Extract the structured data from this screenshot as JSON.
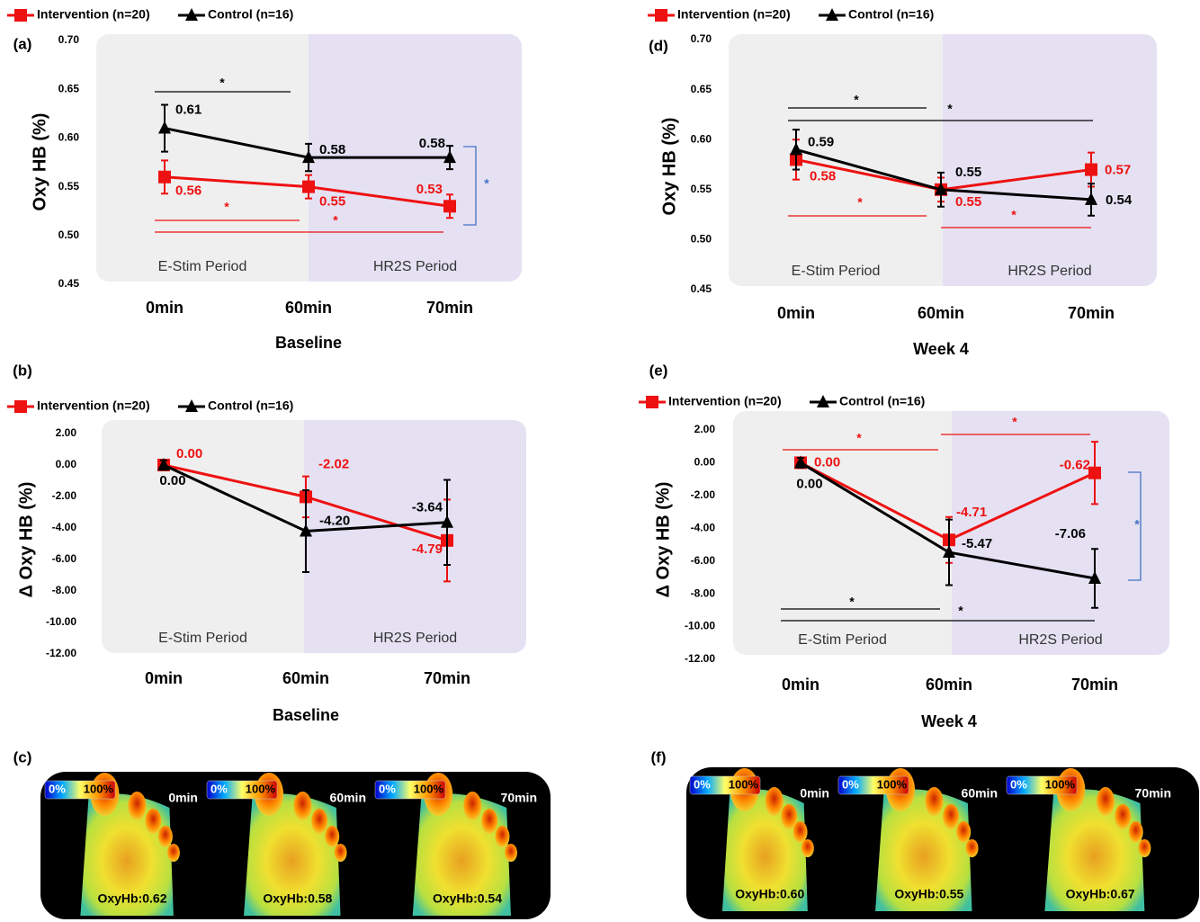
{
  "chart_data": [
    {
      "type": "line",
      "panel": "(a)",
      "ylabel": "Oxy HB (%)",
      "xlabel": "Baseline",
      "categories": [
        "0min",
        "60min",
        "70min"
      ],
      "ylim": [
        0.45,
        0.7
      ],
      "yticks": [
        {
          "value": 0.45,
          "label": "0.45"
        },
        {
          "value": 0.5,
          "label": "0.50"
        },
        {
          "value": 0.55,
          "label": "0.55"
        },
        {
          "value": 0.6,
          "label": "0.60"
        },
        {
          "value": 0.65,
          "label": "0.65"
        },
        {
          "value": 0.7,
          "label": "0.70"
        }
      ],
      "periods": [
        {
          "label": "E-Stim Period",
          "color": "#efefef"
        },
        {
          "label": "HR2S Period",
          "color": "#e5e1f3"
        }
      ],
      "series": [
        {
          "name": "Intervention (n=20)",
          "color": "#ee1111",
          "marker": "square",
          "values": [
            0.56,
            0.55,
            0.53
          ],
          "errors": [
            0.017,
            0.012,
            0.012
          ]
        },
        {
          "name": "Control (n=16)",
          "color": "#000000",
          "marker": "triangle",
          "values": [
            0.61,
            0.58,
            0.58
          ],
          "errors": [
            0.024,
            0.014,
            0.012
          ]
        }
      ],
      "annotations": [
        {
          "text": "*",
          "color": "#000000"
        },
        {
          "text": "*",
          "color": "#ee1111"
        },
        {
          "text": "*",
          "color": "#ee1111"
        },
        {
          "text": "*",
          "color": "#4472c4"
        }
      ]
    },
    {
      "type": "line",
      "panel": "(b)",
      "ylabel": "Δ Oxy HB (%)",
      "xlabel": "Baseline",
      "categories": [
        "0min",
        "60min",
        "70min"
      ],
      "ylim": [
        -12,
        2
      ],
      "yticks": [
        {
          "value": -12,
          "label": "-12.00"
        },
        {
          "value": -10,
          "label": "-10.00"
        },
        {
          "value": -8,
          "label": "-8.00"
        },
        {
          "value": -6,
          "label": "-6.00"
        },
        {
          "value": -4,
          "label": "-4.00"
        },
        {
          "value": -2,
          "label": "-2.00"
        },
        {
          "value": 0,
          "label": "0.00"
        },
        {
          "value": 2,
          "label": "2.00"
        }
      ],
      "periods": [
        {
          "label": "E-Stim Period",
          "color": "#efefef"
        },
        {
          "label": "HR2S Period",
          "color": "#e5e1f3"
        }
      ],
      "series": [
        {
          "name": "Intervention (n=20)",
          "color": "#ee1111",
          "marker": "square",
          "values": [
            0,
            -2.02,
            -4.79
          ],
          "value_labels": [
            "0.00",
            "-2.02",
            "-4.79"
          ],
          "errors": [
            0.3,
            1.3,
            2.6
          ]
        },
        {
          "name": "Control (n=16)",
          "color": "#000000",
          "marker": "triangle",
          "values": [
            0,
            -4.2,
            -3.64
          ],
          "value_labels": [
            "0.00",
            "-4.20",
            "-3.64"
          ],
          "errors": [
            0.3,
            2.6,
            2.7
          ]
        }
      ],
      "annotations": []
    },
    {
      "type": "line",
      "panel": "(d)",
      "ylabel": "Oxy HB (%)",
      "xlabel": "Week 4",
      "categories": [
        "0min",
        "60min",
        "70min"
      ],
      "ylim": [
        0.45,
        0.7
      ],
      "yticks": [
        {
          "value": 0.45,
          "label": "0.45"
        },
        {
          "value": 0.5,
          "label": "0.50"
        },
        {
          "value": 0.55,
          "label": "0.55"
        },
        {
          "value": 0.6,
          "label": "0.60"
        },
        {
          "value": 0.65,
          "label": "0.65"
        },
        {
          "value": 0.7,
          "label": "0.70"
        }
      ],
      "periods": [
        {
          "label": "E-Stim Period",
          "color": "#efefef"
        },
        {
          "label": "HR2S Period",
          "color": "#e5e1f3"
        }
      ],
      "series": [
        {
          "name": "Intervention (n=20)",
          "color": "#ee1111",
          "marker": "square",
          "values": [
            0.58,
            0.55,
            0.57
          ],
          "errors": [
            0.02,
            0.012,
            0.017
          ]
        },
        {
          "name": "Control (n=16)",
          "color": "#000000",
          "marker": "triangle",
          "values": [
            0.59,
            0.55,
            0.54
          ],
          "errors": [
            0.02,
            0.017,
            0.016
          ]
        }
      ],
      "annotations": [
        {
          "text": "*",
          "color": "#000000"
        },
        {
          "text": "*",
          "color": "#000000"
        },
        {
          "text": "*",
          "color": "#ee1111"
        },
        {
          "text": "*",
          "color": "#ee1111"
        }
      ]
    },
    {
      "type": "line",
      "panel": "(e)",
      "ylabel": "Δ Oxy HB (%)",
      "xlabel": "Week 4",
      "categories": [
        "0min",
        "60min",
        "70min"
      ],
      "ylim": [
        -12,
        2
      ],
      "yticks": [
        {
          "value": -12,
          "label": "-12.00"
        },
        {
          "value": -10,
          "label": "-10.00"
        },
        {
          "value": -8,
          "label": "-8.00"
        },
        {
          "value": -6,
          "label": "-6.00"
        },
        {
          "value": -4,
          "label": "-4.00"
        },
        {
          "value": -2,
          "label": "-2.00"
        },
        {
          "value": 0,
          "label": "0.00"
        },
        {
          "value": 2,
          "label": "2.00"
        }
      ],
      "periods": [
        {
          "label": "E-Stim Period",
          "color": "#efefef"
        },
        {
          "label": "HR2S Period",
          "color": "#e5e1f3"
        }
      ],
      "series": [
        {
          "name": "Intervention (n=20)",
          "color": "#ee1111",
          "marker": "square",
          "values": [
            0,
            -4.71,
            -0.62
          ],
          "value_labels": [
            "0.00",
            "-4.71",
            "-0.62"
          ],
          "errors": [
            0.3,
            1.4,
            1.9
          ]
        },
        {
          "name": "Control (n=16)",
          "color": "#000000",
          "marker": "triangle",
          "values": [
            0,
            -5.47,
            -7.06
          ],
          "value_labels": [
            "0.00",
            "-5.47",
            "-7.06"
          ],
          "errors": [
            0.3,
            2.0,
            1.8
          ]
        }
      ],
      "annotations": [
        {
          "text": "*",
          "color": "#ee1111"
        },
        {
          "text": "*",
          "color": "#ee1111"
        },
        {
          "text": "*",
          "color": "#000000"
        },
        {
          "text": "*",
          "color": "#000000"
        },
        {
          "text": "*",
          "color": "#4472c4"
        }
      ]
    }
  ],
  "image_panels": [
    {
      "panel": "(c)",
      "images": [
        {
          "scale_min": "0%",
          "scale_max": "100%",
          "time": "0min",
          "reading": "OxyHb:0.62"
        },
        {
          "scale_min": "0%",
          "scale_max": "100%",
          "time": "60min",
          "reading": "OxyHb:0.58"
        },
        {
          "scale_min": "0%",
          "scale_max": "100%",
          "time": "70min",
          "reading": "OxyHb:0.54"
        }
      ]
    },
    {
      "panel": "(f)",
      "images": [
        {
          "scale_min": "0%",
          "scale_max": "100%",
          "time": "0min",
          "reading": "OxyHb:0.60"
        },
        {
          "scale_min": "0%",
          "scale_max": "100%",
          "time": "60min",
          "reading": "OxyHb:0.55"
        },
        {
          "scale_min": "0%",
          "scale_max": "100%",
          "time": "70min",
          "reading": "OxyHb:0.67"
        }
      ]
    }
  ]
}
